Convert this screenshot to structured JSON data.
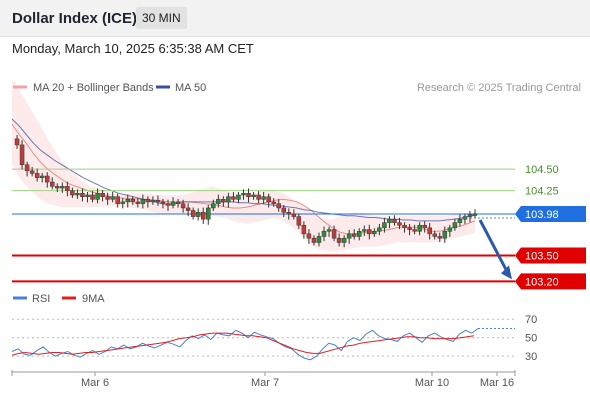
{
  "header": {
    "title": "Dollar Index (ICE)",
    "timeframe": "30 MIN"
  },
  "datetime": "Monday, March 10, 2025 6:35:38 AM CET",
  "colors": {
    "bb": "#f4a3a3",
    "ma20": "#e57373",
    "ma50": "#3b4f9c",
    "up": "#2e8b3a",
    "down": "#c23b3b",
    "resistance": "#9dd37f",
    "support": "#e00000",
    "price": "#1f6fe0",
    "rsi": "#4a7fd8",
    "rsi9": "#e02020",
    "arrow": "#2b5aa6"
  },
  "chart_data": [
    {
      "type": "candlestick",
      "title": "Dollar Index (ICE)",
      "legend": [
        "MA 20 + Bollinger Bands",
        "MA 50"
      ],
      "credit": "Research © 2025 Trading Central",
      "x_ticks": [
        "Mar 6",
        "Mar 7",
        "Mar 10",
        "Mar 16"
      ],
      "ylim": [
        103.1,
        105.3
      ],
      "last_price": 103.98,
      "levels": [
        {
          "value": 104.5,
          "label": "104.50",
          "kind": "resistance"
        },
        {
          "value": 104.25,
          "label": "104.25",
          "kind": "resistance"
        },
        {
          "value": 103.5,
          "label": "103.50",
          "kind": "support"
        },
        {
          "value": 103.2,
          "label": "103.20",
          "kind": "support"
        }
      ],
      "price_label": "103.98",
      "forecast": [
        103.98,
        103.2
      ],
      "close_path": [
        104.85,
        104.78,
        104.55,
        104.48,
        104.45,
        104.4,
        104.42,
        104.35,
        104.3,
        104.28,
        104.3,
        104.25,
        104.2,
        104.22,
        104.18,
        104.2,
        104.15,
        104.22,
        104.18,
        104.15,
        104.18,
        104.1,
        104.12,
        104.15,
        104.12,
        104.1,
        104.15,
        104.12,
        104.14,
        104.12,
        104.1,
        104.08,
        104.12,
        104.1,
        104.05,
        104.02,
        103.95,
        104.0,
        103.92,
        104.05,
        104.1,
        104.15,
        104.12,
        104.18,
        104.15,
        104.2,
        104.22,
        104.18,
        104.2,
        104.15,
        104.18,
        104.12,
        104.1,
        104.05,
        104.0,
        103.98,
        103.95,
        103.85,
        103.75,
        103.7,
        103.65,
        103.72,
        103.78,
        103.8,
        103.7,
        103.65,
        103.7,
        103.75,
        103.72,
        103.78,
        103.8,
        103.75,
        103.78,
        103.82,
        103.88,
        103.92,
        103.88,
        103.85,
        103.82,
        103.8,
        103.78,
        103.85,
        103.82,
        103.75,
        103.72,
        103.7,
        103.78,
        103.82,
        103.88,
        103.92,
        103.95,
        103.97,
        103.98
      ],
      "ma20_path": [
        105.02,
        104.9,
        104.8,
        104.68,
        104.58,
        104.5,
        104.44,
        104.38,
        104.33,
        104.3,
        104.27,
        104.24,
        104.22,
        104.2,
        104.18,
        104.17,
        104.16,
        104.16,
        104.15,
        104.15,
        104.14,
        104.13,
        104.12,
        104.12,
        104.12,
        104.12,
        104.11,
        104.1,
        104.09,
        104.08,
        104.06,
        104.05,
        104.05,
        104.06,
        104.08,
        104.1,
        104.12,
        104.14,
        104.15,
        104.14,
        104.12,
        104.08,
        104.02,
        103.95,
        103.88,
        103.82,
        103.77,
        103.75,
        103.75,
        103.76,
        103.77,
        103.78,
        103.79,
        103.8,
        103.82,
        103.83,
        103.83,
        103.82,
        103.8,
        103.78,
        103.78,
        103.8,
        103.82,
        103.84,
        103.87,
        103.9
      ],
      "bb_upper_path": [
        105.55,
        105.42,
        105.28,
        105.15,
        105.0,
        104.85,
        104.72,
        104.6,
        104.5,
        104.42,
        104.35,
        104.3,
        104.28,
        104.25,
        104.22,
        104.2,
        104.2,
        104.22,
        104.22,
        104.22,
        104.2,
        104.2,
        104.2,
        104.2,
        104.2,
        104.22,
        104.25,
        104.28,
        104.3,
        104.28,
        104.25,
        104.22,
        104.2,
        104.2,
        104.22,
        104.25,
        104.27,
        104.25,
        104.22,
        104.18,
        104.12,
        104.08,
        104.0,
        103.95,
        103.92,
        103.92,
        103.95,
        103.98,
        104.0,
        104.0,
        103.98,
        103.96,
        103.95,
        103.95,
        103.95,
        103.96,
        103.96,
        103.96,
        103.96,
        103.96,
        103.96,
        103.96,
        103.97,
        103.97,
        103.98,
        103.98
      ],
      "bb_lower_path": [
        104.55,
        104.4,
        104.3,
        104.22,
        104.15,
        104.1,
        104.08,
        104.06,
        104.06,
        104.06,
        104.06,
        104.06,
        104.06,
        104.07,
        104.07,
        104.07,
        104.06,
        104.05,
        104.04,
        104.02,
        104.0,
        103.98,
        103.98,
        103.98,
        103.98,
        103.97,
        103.96,
        103.96,
        103.96,
        103.95,
        103.93,
        103.9,
        103.88,
        103.87,
        103.88,
        103.9,
        103.92,
        103.93,
        103.9,
        103.85,
        103.78,
        103.7,
        103.62,
        103.57,
        103.55,
        103.55,
        103.55,
        103.57,
        103.58,
        103.6,
        103.6,
        103.6,
        103.62,
        103.63,
        103.65,
        103.65,
        103.65,
        103.65,
        103.65,
        103.65,
        103.66,
        103.68,
        103.7,
        103.72,
        103.74,
        103.76
      ],
      "ma50_path": [
        105.08,
        105.0,
        104.9,
        104.8,
        104.72,
        104.66,
        104.6,
        104.55,
        104.5,
        104.45,
        104.4,
        104.36,
        104.32,
        104.28,
        104.25,
        104.22,
        104.2,
        104.18,
        104.16,
        104.14,
        104.12,
        104.1,
        104.09,
        104.1,
        104.12,
        104.12,
        104.12,
        104.12,
        104.12,
        104.12,
        104.12,
        104.12,
        104.11,
        104.11,
        104.1,
        104.1,
        104.09,
        104.08,
        104.07,
        104.06,
        104.05,
        104.03,
        104.02,
        104.0,
        103.99,
        103.98,
        103.97,
        103.96,
        103.96,
        103.95,
        103.94,
        103.94,
        103.93,
        103.92,
        103.92,
        103.91,
        103.91,
        103.9,
        103.9,
        103.9,
        103.9,
        103.91,
        103.92,
        103.93,
        103.95,
        103.97
      ]
    },
    {
      "type": "line",
      "legend": [
        "RSI",
        "9MA"
      ],
      "ylim": [
        15,
        80
      ],
      "y_ticks": [
        "70",
        "50",
        "30"
      ],
      "tick_values": [
        70,
        50,
        30
      ],
      "rsi_path": [
        35,
        38,
        32,
        31,
        36,
        40,
        34,
        30,
        33,
        35,
        31,
        29,
        33,
        36,
        32,
        35,
        40,
        38,
        42,
        38,
        40,
        44,
        41,
        39,
        42,
        45,
        43,
        40,
        47,
        52,
        49,
        53,
        48,
        55,
        53,
        52,
        58,
        55,
        50,
        56,
        53,
        51,
        49,
        44,
        40,
        38,
        32,
        28,
        26,
        30,
        38,
        44,
        42,
        36,
        46,
        50,
        47,
        54,
        58,
        52,
        49,
        48,
        46,
        52,
        55,
        50,
        45,
        52,
        55,
        51,
        48,
        46,
        54,
        58,
        55,
        60
      ],
      "rsi_ma_path": [
        31,
        33,
        34,
        33,
        32,
        33,
        34,
        34,
        33,
        32,
        33,
        34,
        34,
        35,
        36,
        37,
        38,
        39,
        40,
        41,
        42,
        43,
        44,
        45,
        47,
        49,
        50,
        51,
        53,
        54,
        55,
        55,
        55,
        54,
        53,
        52,
        52,
        51,
        50,
        47,
        44,
        41,
        38,
        36,
        34,
        33,
        33,
        35,
        37,
        39,
        41,
        42,
        44,
        45,
        46,
        47,
        48,
        49,
        50,
        51,
        51,
        50,
        50,
        49,
        49,
        49,
        49,
        50,
        51,
        52
      ]
    }
  ]
}
